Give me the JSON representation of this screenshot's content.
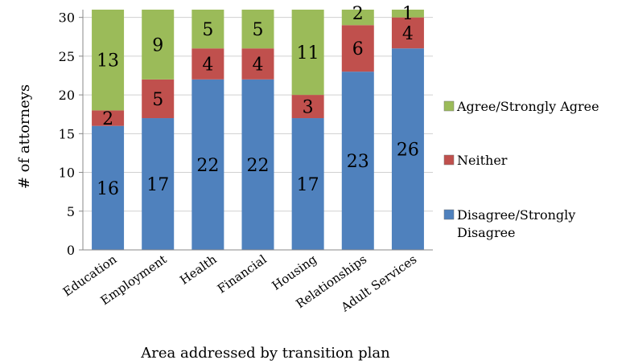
{
  "chart_data": {
    "type": "bar",
    "stacked": true,
    "categories": [
      "Education",
      "Employment",
      "Health",
      "Financial",
      "Housing",
      "Relationships",
      "Adult Services"
    ],
    "series": [
      {
        "name": "Disagree/Strongly Disagree",
        "values": [
          16,
          17,
          22,
          22,
          17,
          23,
          26
        ],
        "color": "#4f81bd"
      },
      {
        "name": "Neither",
        "values": [
          2,
          5,
          4,
          4,
          3,
          6,
          4
        ],
        "color": "#c0504d"
      },
      {
        "name": "Agree/Strongly Agree",
        "values": [
          13,
          9,
          5,
          5,
          11,
          2,
          1
        ],
        "color": "#9bbb59"
      }
    ],
    "title": "",
    "xlabel": "Area addressed by transition plan",
    "ylabel": "# of attorneys",
    "ylim": [
      0,
      31
    ],
    "yticks": [
      0,
      5,
      10,
      15,
      20,
      25,
      30
    ],
    "grid": true,
    "legend_position": "right"
  }
}
